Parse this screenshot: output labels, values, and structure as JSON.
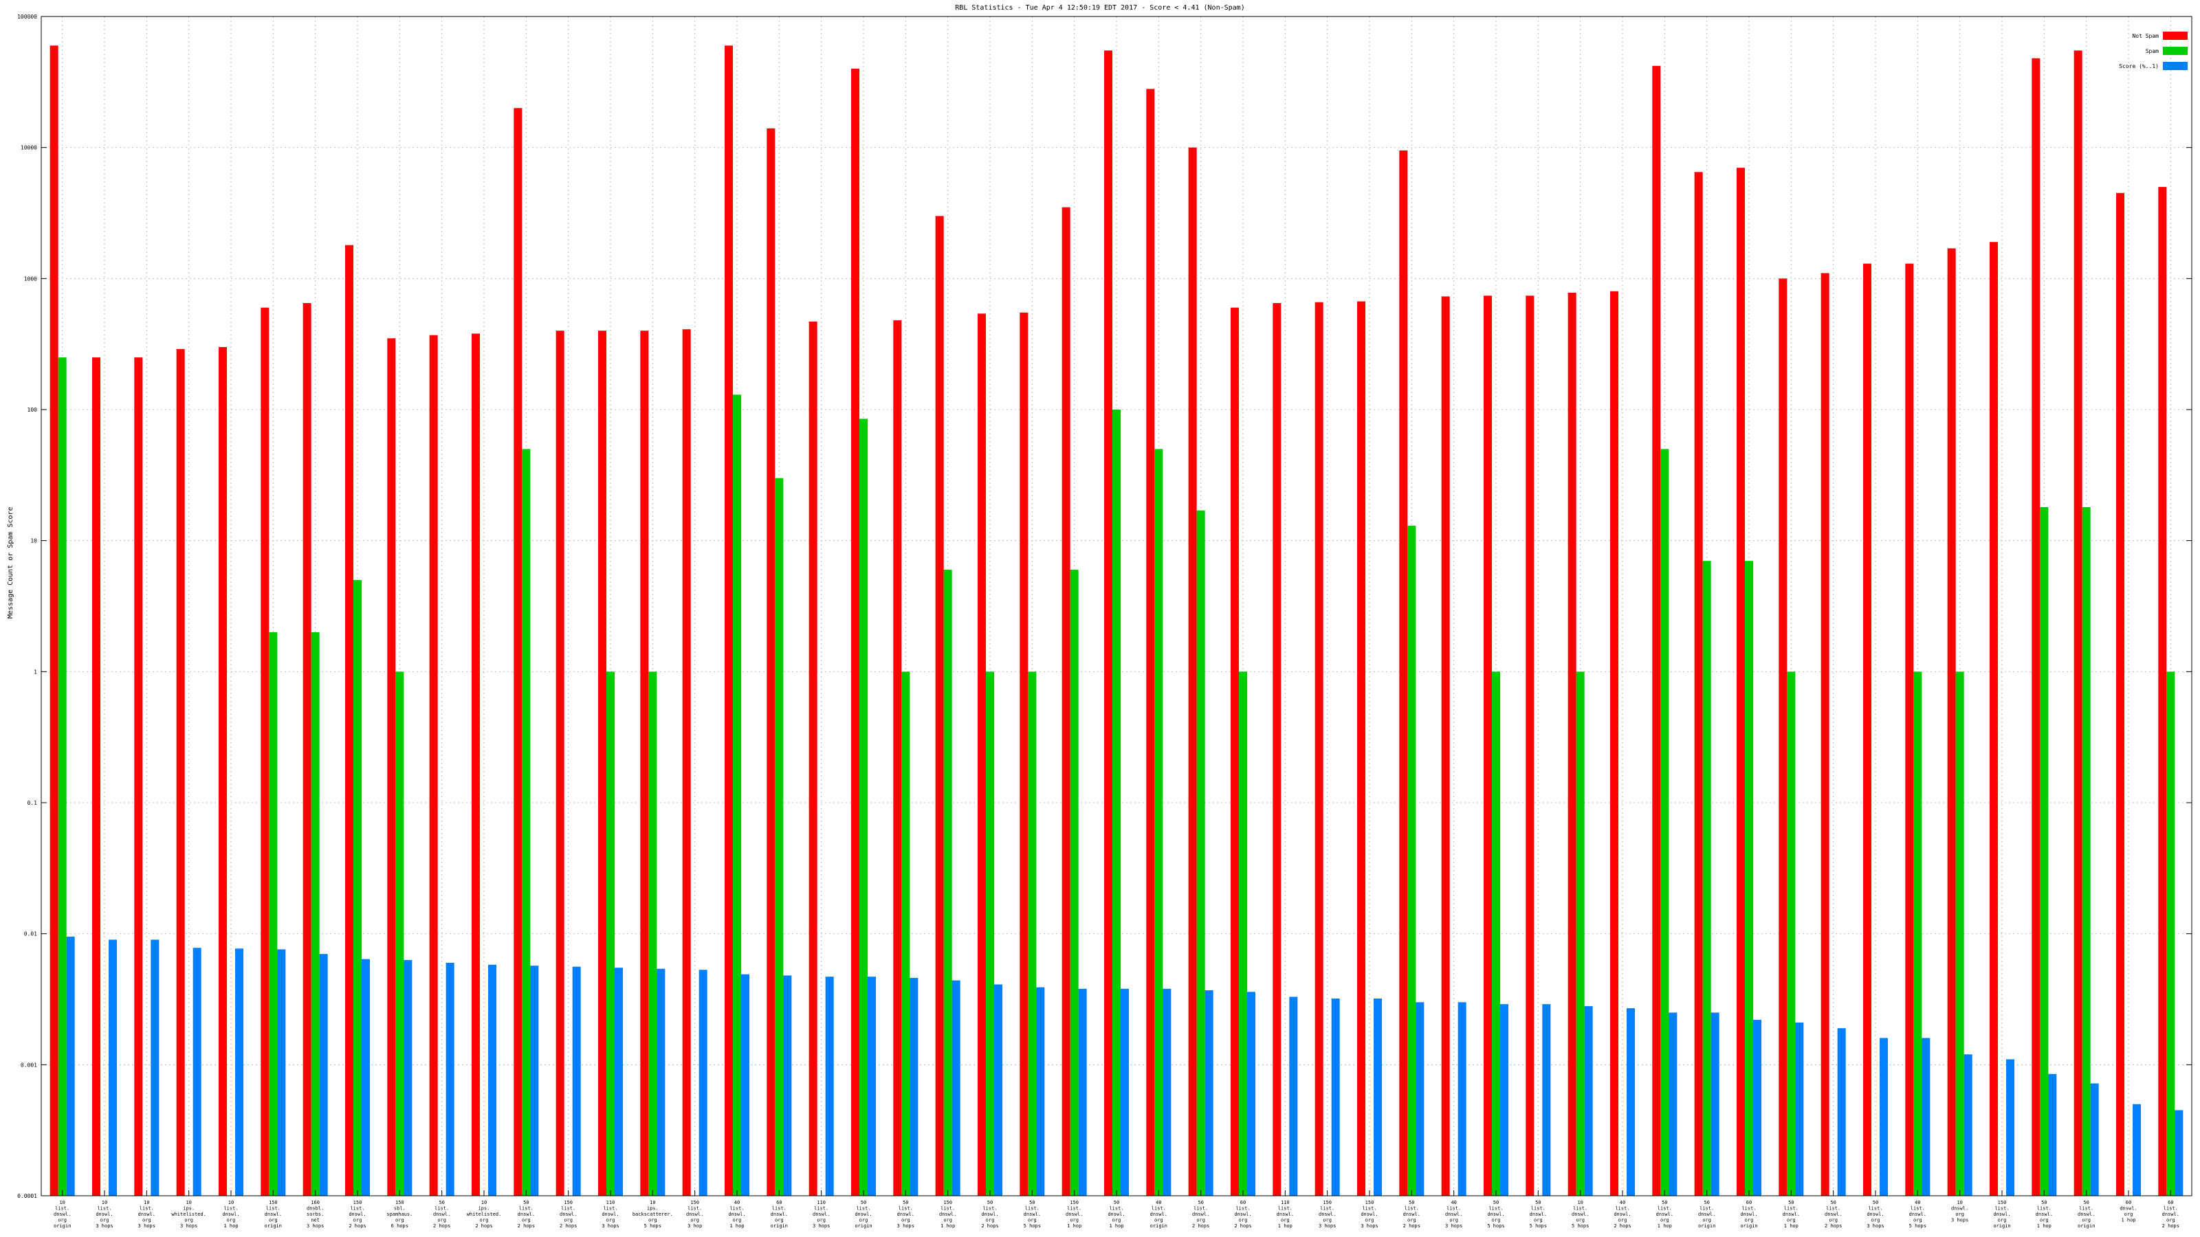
{
  "chart_data": {
    "type": "bar",
    "title": "RBL Statistics - Tue Apr  4 12:50:19 EDT 2017 - Score < 4.41 (Non-Spam)",
    "ylabel": "Message Count or Spam Score",
    "y_scale": "log",
    "ylim": [
      0.0001,
      100000
    ],
    "y_ticks": [
      "0.0001",
      "0.001",
      "0.01",
      "0.1",
      "1",
      "10",
      "100",
      "1000",
      "10000",
      "100000"
    ],
    "grid": true,
    "legend_position": "top-right",
    "colors": {
      "not_spam": "#ff0000",
      "spam": "#00cc00",
      "score": "#0080ff"
    },
    "categories": [
      "10\nlist.\ndnswl.\norg\norigin",
      "10\nlist.\ndnswl.\norg\n3 hops",
      "10\nlist.\ndnswl.\norg\n3 hops",
      "10\nips.\nwhitelisted.\norg\n3 hops",
      "10\nlist.\ndnswl.\norg\n1 hop",
      "150\nlist.\ndnswl.\norg\norigin",
      "160\ndnsbl.\nsorbs.\nnet\n3 hops",
      "150\nlist.\ndnswl.\norg\n2 hops",
      "150\nsbl.\nspamhaus.\norg\n6 hops",
      "50\nlist.\ndnswl.\norg\n2 hops",
      "10\nips.\nwhitelisted.\norg\n2 hops",
      "50\nlist.\ndnswl.\norg\n2 hops",
      "150\nlist.\ndnswl.\norg\n2 hops",
      "110\nlist.\ndnswl.\norg\n3 hops",
      "10\nips.\nbackscatterer.\norg\n5 hops",
      "150\nlist.\ndnswl.\norg\n3 hop",
      "40\nlist.\ndnswl.\norg\n1 hop",
      "60\nlist.\ndnswl.\norg\norigin",
      "110\nlist.\ndnswl.\norg\n3 hops",
      "50\nlist.\ndnswl.\norg\norigin",
      "50\nlist.\ndnswl.\norg\n3 hops",
      "150\nlist.\ndnswl.\norg\n1 hop",
      "50\nlist.\ndnswl.\norg\n2 hops",
      "50\nlist.\ndnswl.\norg\n5 hops",
      "150\nlist.\ndnswl.\norg\n1 hop",
      "50\nlist.\ndnswl.\norg\n1 hop",
      "40\nlist.\ndnswl.\norg\norigin",
      "50\nlist.\ndnswl.\norg\n2 hops",
      "60\nlist.\ndnswl.\norg\n2 hops",
      "110\nlist.\ndnswl.\norg\n1 hop",
      "150\nlist.\ndnswl.\norg\n3 hops",
      "150\nlist.\ndnswl.\norg\n3 hops",
      "50\nlist.\ndnswl.\norg\n2 hops",
      "40\nlist.\ndnswl.\norg\n3 hops",
      "50\nlist.\ndnswl.\norg\n5 hops",
      "50\nlist.\ndnswl.\norg\n5 hops",
      "10\nlist.\ndnswl.\norg\n5 hops",
      "40\nlist.\ndnswl.\norg\n2 hops",
      "50\nlist.\ndnswl.\norg\n1 hop",
      "50\nlist.\ndnswl.\norg\norigin",
      "60\nlist.\ndnswl.\norg\norigin",
      "50\nlist.\ndnswl.\norg\n1 hop",
      "50\nlist.\ndnswl.\norg\n2 hops",
      "50\nlist.\ndnswl.\norg\n3 hops",
      "40\nlist.\ndnswl.\norg\n5 hops",
      "10\ndnswl.\norg\n3 hops",
      "150\nlist.\ndnswl.\norg\norigin",
      "50\nlist.\ndnswl.\norg\n1 hop",
      "50\nlist.\ndnswl.\norg\norigin",
      "60\ndnswl.\norg\n1 hop",
      "60\nlist.\ndnswl.\norg\n2 hops"
    ],
    "series": [
      {
        "name": "Not Spam",
        "values": [
          60000,
          250,
          250,
          290,
          300,
          600,
          650,
          1800,
          350,
          370,
          380,
          20000,
          400,
          400,
          400,
          410,
          60000,
          14000,
          470,
          40000,
          480,
          3000,
          540,
          550,
          3500,
          55000,
          28000,
          10000,
          600,
          650,
          660,
          670,
          9500,
          730,
          740,
          740,
          780,
          800,
          42000,
          6500,
          7000,
          1000,
          1100,
          1300,
          1300,
          1700,
          1900,
          48000,
          55000,
          4500,
          5000
        ]
      },
      {
        "name": "Spam",
        "values": [
          250,
          null,
          null,
          null,
          null,
          2,
          2,
          5,
          1,
          null,
          null,
          50,
          null,
          1,
          1,
          null,
          130,
          30,
          null,
          85,
          1,
          6,
          1,
          1,
          6,
          100,
          50,
          17,
          1,
          null,
          null,
          null,
          13,
          null,
          1,
          null,
          1,
          null,
          50,
          7,
          7,
          1,
          null,
          null,
          1,
          1,
          null,
          18,
          18,
          null,
          1
        ]
      },
      {
        "name": "Score (%..1)",
        "values": [
          0.0095,
          0.009,
          0.009,
          0.0078,
          0.0077,
          0.0076,
          0.007,
          0.0064,
          0.0063,
          0.006,
          0.0058,
          0.0057,
          0.0056,
          0.0055,
          0.0054,
          0.0053,
          0.0049,
          0.0048,
          0.0047,
          0.0047,
          0.0046,
          0.0044,
          0.0041,
          0.0039,
          0.0038,
          0.0038,
          0.0038,
          0.0037,
          0.0036,
          0.0033,
          0.0032,
          0.0032,
          0.003,
          0.003,
          0.0029,
          0.0029,
          0.0028,
          0.0027,
          0.0025,
          0.0025,
          0.0022,
          0.0021,
          0.0019,
          0.0016,
          0.0016,
          0.0012,
          0.0011,
          0.00085,
          0.00072,
          0.0005,
          0.00045
        ]
      }
    ]
  }
}
